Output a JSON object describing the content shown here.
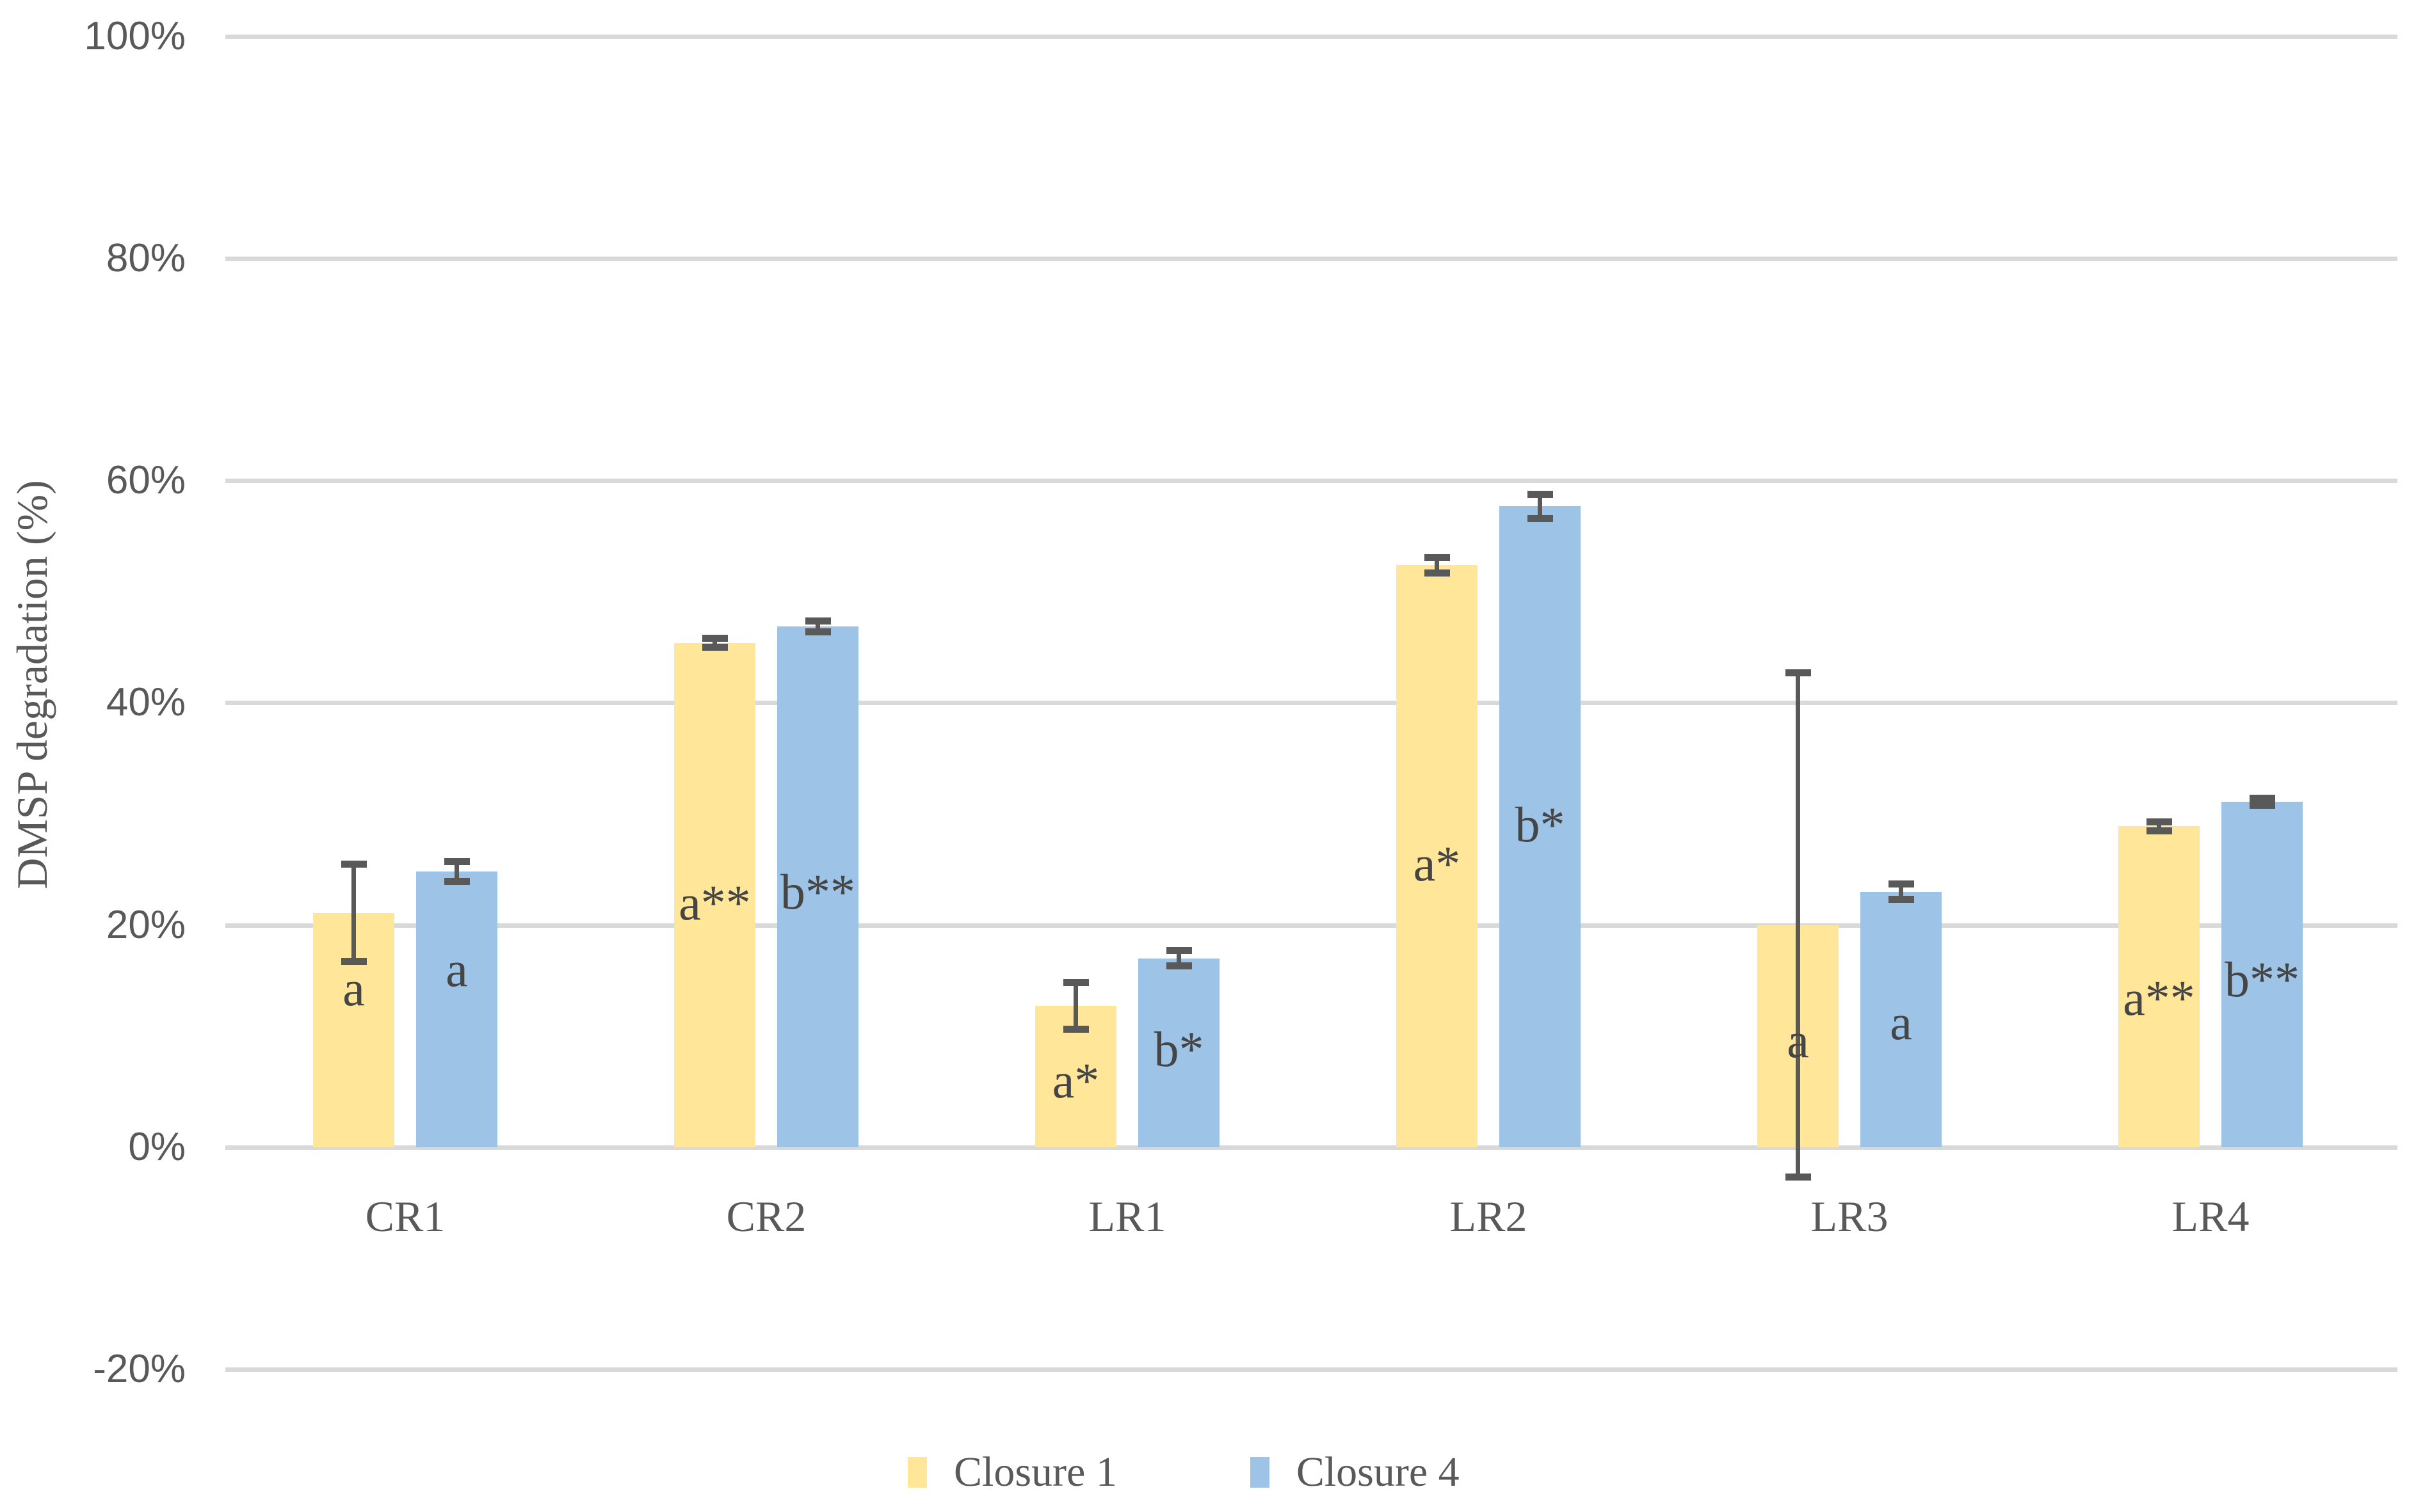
{
  "chart_data": {
    "type": "bar",
    "title": "",
    "ylabel": "DMSP degradation (%)",
    "xlabel": "",
    "ylim": [
      -20,
      100
    ],
    "grid": "horizontal",
    "legend_position": "bottom-center",
    "y_ticks": [
      {
        "value": 100,
        "label": "100%"
      },
      {
        "value": 80,
        "label": "80%"
      },
      {
        "value": 60,
        "label": "60%"
      },
      {
        "value": 40,
        "label": "40%"
      },
      {
        "value": 20,
        "label": "20%"
      },
      {
        "value": 0,
        "label": "0%"
      },
      {
        "value": -20,
        "label": "-20%"
      }
    ],
    "categories": [
      "CR1",
      "CR2",
      "LR1",
      "LR2",
      "LR3",
      "LR4"
    ],
    "series": [
      {
        "name": "Closure 1",
        "color": "#FFE699",
        "values": [
          21.1,
          45.4,
          12.7,
          52.4,
          20.0,
          28.9
        ],
        "errors": [
          4.4,
          0.4,
          2.1,
          0.7,
          22.7,
          0.4
        ],
        "bar_letters": [
          "a",
          "a**",
          "a*",
          "a*",
          "a",
          "a**"
        ],
        "letter_heights_pct": [
          14.3,
          22.0,
          6.0,
          25.5,
          9.6,
          13.4
        ]
      },
      {
        "name": "Closure 4",
        "color": "#9DC3E6",
        "values": [
          24.8,
          46.9,
          17.0,
          57.7,
          23.0,
          31.1
        ],
        "errors": [
          0.9,
          0.5,
          0.7,
          1.1,
          0.7,
          0.3
        ],
        "bar_letters": [
          "a",
          "b**",
          "b*",
          "b*",
          "a",
          "b**"
        ],
        "letter_heights_pct": [
          16.0,
          23.0,
          8.8,
          29.0,
          11.2,
          15.1
        ]
      }
    ],
    "colors": {
      "gridline": "#d9d9d9",
      "error_bar": "#595959",
      "tick_text": "#595959",
      "annotation_text": "#454545"
    }
  },
  "legend": {
    "items": [
      {
        "label": "Closure 1",
        "color": "#FFE699"
      },
      {
        "label": "Closure 4",
        "color": "#9DC3E6"
      }
    ]
  }
}
